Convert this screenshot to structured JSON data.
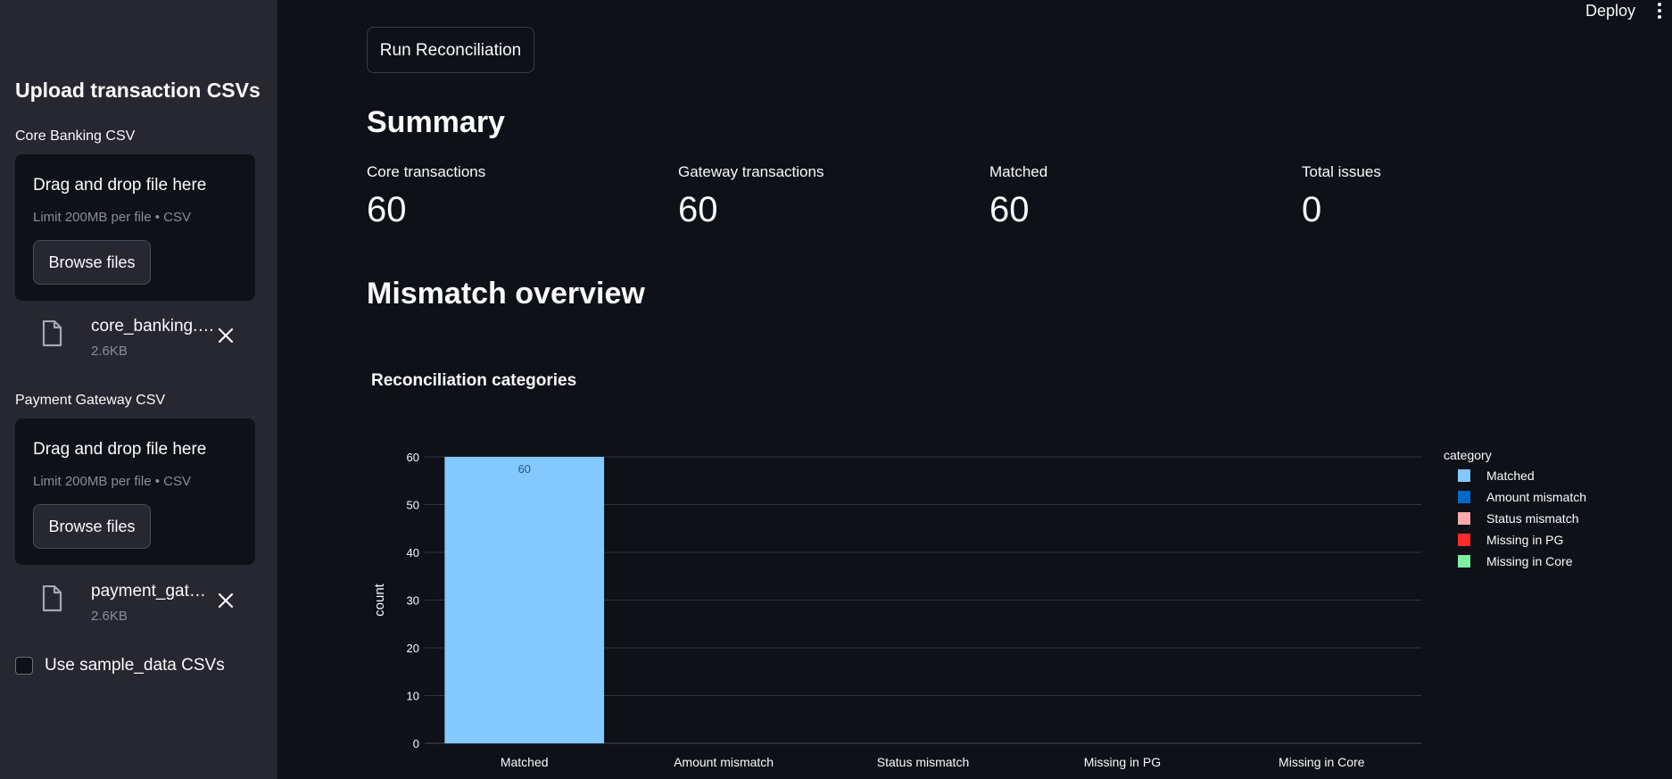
{
  "topbar": {
    "deploy_label": "Deploy"
  },
  "sidebar": {
    "title": "Upload transaction CSVs",
    "uploaders": [
      {
        "label": "Core Banking CSV",
        "drop_text": "Drag and drop file here",
        "limit_text": "Limit 200MB per file • CSV",
        "browse_label": "Browse files",
        "file_name": "core_banking.…",
        "file_size": "2.6KB"
      },
      {
        "label": "Payment Gateway CSV",
        "drop_text": "Drag and drop file here",
        "limit_text": "Limit 200MB per file • CSV",
        "browse_label": "Browse files",
        "file_name": "payment_gat…",
        "file_size": "2.6KB"
      }
    ],
    "sample_checkbox_label": "Use sample_data CSVs",
    "sample_checked": false
  },
  "main": {
    "run_button_label": "Run Reconciliation",
    "summary_heading": "Summary",
    "metrics": [
      {
        "label": "Core transactions",
        "value": "60"
      },
      {
        "label": "Gateway transactions",
        "value": "60"
      },
      {
        "label": "Matched",
        "value": "60"
      },
      {
        "label": "Total issues",
        "value": "0"
      }
    ],
    "mismatch_heading": "Mismatch overview"
  },
  "colors": {
    "background": "#0e1117",
    "sidebar": "#262730",
    "matched": "#83c9ff",
    "amount_mismatch": "#0068c9",
    "status_mismatch": "#ffabab",
    "missing_in_pg": "#ff2b2b",
    "missing_in_core": "#7defa1"
  },
  "chart_data": {
    "type": "bar",
    "title": "Reconciliation categories",
    "categories": [
      "Matched",
      "Amount mismatch",
      "Status mismatch",
      "Missing in PG",
      "Missing in Core"
    ],
    "values": [
      60,
      0,
      0,
      0,
      0
    ],
    "data_labels": [
      "60",
      "",
      "",
      "",
      ""
    ],
    "bar_colors": [
      "#83c9ff",
      "#0068c9",
      "#ffabab",
      "#ff2b2b",
      "#7defa1"
    ],
    "xlabel": "",
    "ylabel": "count",
    "ylim": [
      0,
      60
    ],
    "yticks": [
      0,
      10,
      20,
      30,
      40,
      50,
      60
    ],
    "grid": true,
    "legend": {
      "title": "category",
      "placement": "right",
      "entries": [
        {
          "name": "Matched",
          "color": "#83c9ff"
        },
        {
          "name": "Amount mismatch",
          "color": "#0068c9"
        },
        {
          "name": "Status mismatch",
          "color": "#ffabab"
        },
        {
          "name": "Missing in PG",
          "color": "#ff2b2b"
        },
        {
          "name": "Missing in Core",
          "color": "#7defa1"
        }
      ]
    }
  }
}
